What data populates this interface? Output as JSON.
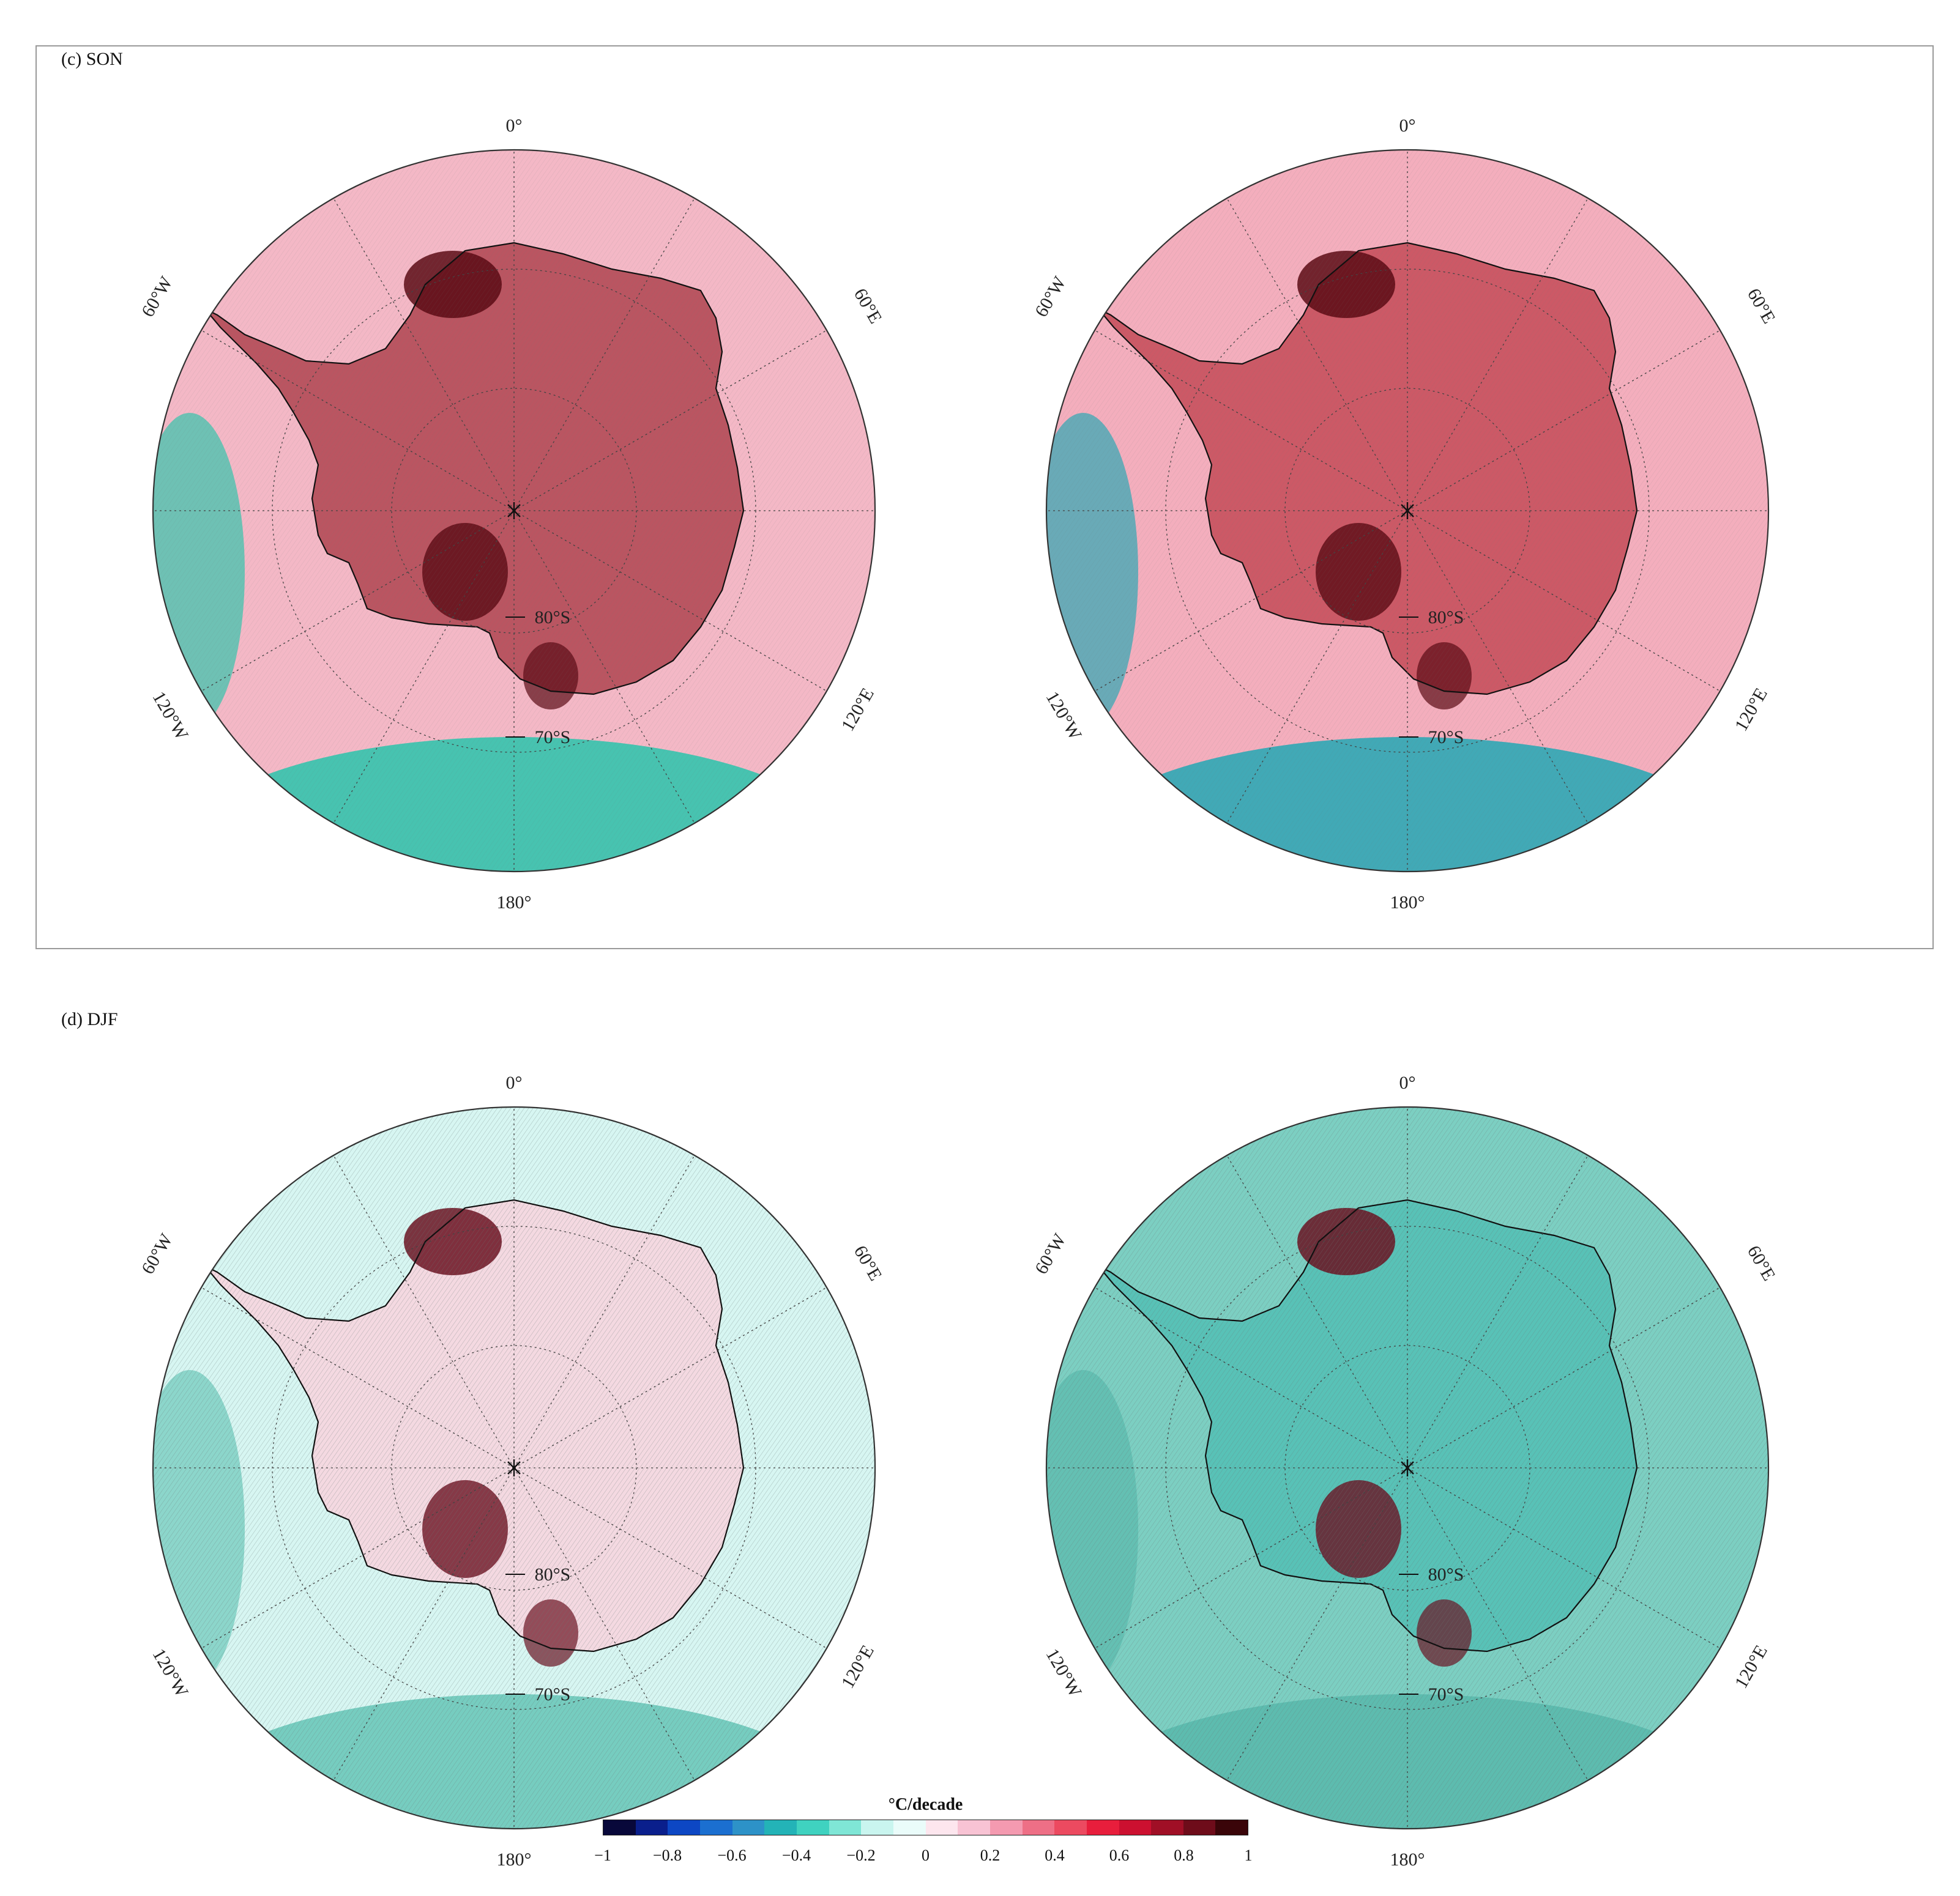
{
  "panels": [
    {
      "label": "(c) SON"
    },
    {
      "label": "(d) DJF"
    }
  ],
  "map_labels": {
    "lon_0": "0°",
    "lon_180": "180°",
    "lon_60w": "60°W",
    "lon_60e": "60°E",
    "lon_120w": "120°W",
    "lon_120e": "120°E",
    "lat_80": "80°S",
    "lat_70": "70°S"
  },
  "colorbar": {
    "title": "°C/decade",
    "range": [
      -1,
      1
    ],
    "tick_labels": [
      "−1",
      "−0.8",
      "−0.6",
      "−0.4",
      "−0.2",
      "0",
      "0.2",
      "0.4",
      "0.6",
      "0.8",
      "1"
    ],
    "colors": [
      "#08083a",
      "#0a1f8c",
      "#0d47c4",
      "#1b6fd0",
      "#2d92c8",
      "#23b3b7",
      "#3fd2c0",
      "#7fe6d6",
      "#c9f5ef",
      "#eafcfa",
      "#fde6ee",
      "#f8c3d4",
      "#f49ab0",
      "#ee6f86",
      "#ec4a60",
      "#e81e3c",
      "#cc1030",
      "#a00f26",
      "#6e0c1a",
      "#3a0509"
    ]
  },
  "maps": [
    {
      "name": "SON-left",
      "background": "#f4b8c6",
      "ocean_south": "#34c4ad",
      "interior": "#b44a55",
      "peak": "#5a0a14"
    },
    {
      "name": "SON-right",
      "background": "#f4aebd",
      "ocean_south": "#2da8b5",
      "interior": "#c8505c",
      "peak": "#5a0a14"
    },
    {
      "name": "DJF-left",
      "background": "#d7f6f2",
      "ocean_south": "#6cc9ba",
      "interior": "#f7d6df",
      "peak": "#6a1020"
    },
    {
      "name": "DJF-right",
      "background": "#7ccfc2",
      "ocean_south": "#5ab9ad",
      "interior": "#54c0b6",
      "peak": "#6a1020"
    }
  ]
}
